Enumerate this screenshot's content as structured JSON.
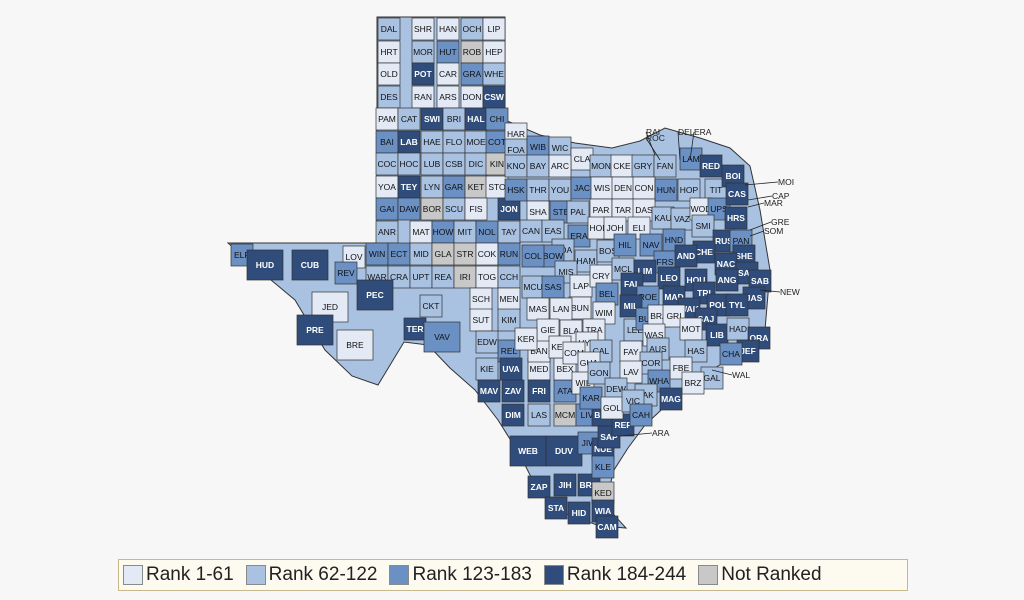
{
  "colors": {
    "rank_1_61": "#e3eaf5",
    "rank_62_122": "#aac2e2",
    "rank_123_183": "#6a90c4",
    "rank_184_244": "#2f4c7a",
    "not_ranked": "#c8c8c8"
  },
  "legend": [
    {
      "label": "Rank 1-61",
      "tier": 1
    },
    {
      "label": "Rank 62-122",
      "tier": 2
    },
    {
      "label": "Rank 123-183",
      "tier": 3
    },
    {
      "label": "Rank 184-244",
      "tier": 4
    },
    {
      "label": "Not Ranked",
      "tier": 0
    }
  ],
  "external_labels": [
    "RAI",
    "DEL",
    "ERA",
    "ROC",
    "MOI",
    "CAP",
    "MAR",
    "GRE",
    "SOM",
    "NEW",
    "WAL",
    "ARA"
  ],
  "counties": [
    {
      "label": "DAL",
      "tier": 2
    },
    {
      "label": "SHR",
      "tier": 1
    },
    {
      "label": "HAN",
      "tier": 1
    },
    {
      "label": "OCH",
      "tier": 2
    },
    {
      "label": "LIP",
      "tier": 1
    },
    {
      "label": "HRT",
      "tier": 1
    },
    {
      "label": "MOR",
      "tier": 2
    },
    {
      "label": "HUT",
      "tier": 3
    },
    {
      "label": "ROB",
      "tier": 0
    },
    {
      "label": "HEP",
      "tier": 1
    },
    {
      "label": "OLD",
      "tier": 1
    },
    {
      "label": "POT",
      "tier": 4
    },
    {
      "label": "CAR",
      "tier": 1
    },
    {
      "label": "GRA",
      "tier": 3
    },
    {
      "label": "WHE",
      "tier": 2
    },
    {
      "label": "DES",
      "tier": 2
    },
    {
      "label": "RAN",
      "tier": 1
    },
    {
      "label": "ARS",
      "tier": 1
    },
    {
      "label": "DON",
      "tier": 1
    },
    {
      "label": "CSW",
      "tier": 4
    },
    {
      "label": "PAM",
      "tier": 1
    },
    {
      "label": "CAT",
      "tier": 2
    },
    {
      "label": "SWI",
      "tier": 4
    },
    {
      "label": "BRI",
      "tier": 2
    },
    {
      "label": "HAL",
      "tier": 4
    },
    {
      "label": "CHI",
      "tier": 3
    },
    {
      "label": "BAI",
      "tier": 3
    },
    {
      "label": "LAB",
      "tier": 4
    },
    {
      "label": "HAE",
      "tier": 2
    },
    {
      "label": "FLO",
      "tier": 2
    },
    {
      "label": "MOE",
      "tier": 2
    },
    {
      "label": "COT",
      "tier": 3
    },
    {
      "label": "COC",
      "tier": 2
    },
    {
      "label": "HOC",
      "tier": 2
    },
    {
      "label": "LUB",
      "tier": 2
    },
    {
      "label": "CSB",
      "tier": 2
    },
    {
      "label": "DIC",
      "tier": 2
    },
    {
      "label": "KIN",
      "tier": 0
    },
    {
      "label": "YOA",
      "tier": 1
    },
    {
      "label": "TEY",
      "tier": 4
    },
    {
      "label": "LYN",
      "tier": 2
    },
    {
      "label": "GAR",
      "tier": 3
    },
    {
      "label": "KET",
      "tier": 0
    },
    {
      "label": "STO",
      "tier": 1
    },
    {
      "label": "GAI",
      "tier": 3
    },
    {
      "label": "DAW",
      "tier": 3
    },
    {
      "label": "BOR",
      "tier": 0
    },
    {
      "label": "SCU",
      "tier": 2
    },
    {
      "label": "FIS",
      "tier": 1
    },
    {
      "label": "JON",
      "tier": 4
    },
    {
      "label": "ANR",
      "tier": 2
    },
    {
      "label": "MAT",
      "tier": 1
    },
    {
      "label": "HOW",
      "tier": 3
    },
    {
      "label": "MIT",
      "tier": 2
    },
    {
      "label": "NOL",
      "tier": 3
    },
    {
      "label": "TAY",
      "tier": 2
    },
    {
      "label": "WIN",
      "tier": 3
    },
    {
      "label": "ECT",
      "tier": 3
    },
    {
      "label": "MID",
      "tier": 2
    },
    {
      "label": "GLA",
      "tier": 0
    },
    {
      "label": "STR",
      "tier": 0
    },
    {
      "label": "COK",
      "tier": 1
    },
    {
      "label": "RUN",
      "tier": 3
    },
    {
      "label": "LOV",
      "tier": 1
    },
    {
      "label": "WAR",
      "tier": 2
    },
    {
      "label": "CRA",
      "tier": 2
    },
    {
      "label": "UPT",
      "tier": 2
    },
    {
      "label": "REA",
      "tier": 2
    },
    {
      "label": "IRI",
      "tier": 0
    },
    {
      "label": "TOG",
      "tier": 1
    },
    {
      "label": "CCH",
      "tier": 2
    },
    {
      "label": "ELP",
      "tier": 3
    },
    {
      "label": "HUD",
      "tier": 4
    },
    {
      "label": "CUB",
      "tier": 4
    },
    {
      "label": "REV",
      "tier": 3
    },
    {
      "label": "PEC",
      "tier": 4
    },
    {
      "label": "JED",
      "tier": 1
    },
    {
      "label": "CKT",
      "tier": 2
    },
    {
      "label": "TER",
      "tier": 4
    },
    {
      "label": "PRE",
      "tier": 4
    },
    {
      "label": "BRE",
      "tier": 1
    },
    {
      "label": "VAV",
      "tier": 3
    },
    {
      "label": "SCH",
      "tier": 1
    },
    {
      "label": "MEN",
      "tier": 1
    },
    {
      "label": "SUT",
      "tier": 1
    },
    {
      "label": "KIM",
      "tier": 2
    },
    {
      "label": "EDW",
      "tier": 2
    },
    {
      "label": "KIE",
      "tier": 2
    },
    {
      "label": "REL",
      "tier": 3
    },
    {
      "label": "UVA",
      "tier": 4
    },
    {
      "label": "MED",
      "tier": 1
    },
    {
      "label": "BAN",
      "tier": 1
    },
    {
      "label": "MAV",
      "tier": 4
    },
    {
      "label": "ZAV",
      "tier": 4
    },
    {
      "label": "FRI",
      "tier": 4
    },
    {
      "label": "ATA",
      "tier": 3
    },
    {
      "label": "BEX",
      "tier": 1
    },
    {
      "label": "DIM",
      "tier": 4
    },
    {
      "label": "LAS",
      "tier": 2
    },
    {
      "label": "MCM",
      "tier": 0
    },
    {
      "label": "LIV",
      "tier": 3
    },
    {
      "label": "BEE",
      "tier": 4
    },
    {
      "label": "WEB",
      "tier": 4
    },
    {
      "label": "DUV",
      "tier": 4
    },
    {
      "label": "JIW",
      "tier": 3
    },
    {
      "label": "NUE",
      "tier": 4
    },
    {
      "label": "SAP",
      "tier": 4
    },
    {
      "label": "REF",
      "tier": 4
    },
    {
      "label": "ZAP",
      "tier": 4
    },
    {
      "label": "JIH",
      "tier": 4
    },
    {
      "label": "BRO",
      "tier": 4
    },
    {
      "label": "KLE",
      "tier": 3
    },
    {
      "label": "KED",
      "tier": 0
    },
    {
      "label": "STA",
      "tier": 4
    },
    {
      "label": "HID",
      "tier": 4
    },
    {
      "label": "WIA",
      "tier": 4
    },
    {
      "label": "CAM",
      "tier": 4
    },
    {
      "label": "HAR",
      "tier": 1
    },
    {
      "label": "FOA",
      "tier": 2
    },
    {
      "label": "WIB",
      "tier": 3
    },
    {
      "label": "WIC",
      "tier": 2
    },
    {
      "label": "CLA",
      "tier": 1
    },
    {
      "label": "MON",
      "tier": 2
    },
    {
      "label": "KNO",
      "tier": 2
    },
    {
      "label": "BAY",
      "tier": 2
    },
    {
      "label": "ARC",
      "tier": 1
    },
    {
      "label": "CKE",
      "tier": 1
    },
    {
      "label": "GRY",
      "tier": 2
    },
    {
      "label": "FAN",
      "tier": 2
    },
    {
      "label": "LAM",
      "tier": 3
    },
    {
      "label": "RED",
      "tier": 4
    },
    {
      "label": "HSK",
      "tier": 3
    },
    {
      "label": "THR",
      "tier": 2
    },
    {
      "label": "YOU",
      "tier": 2
    },
    {
      "label": "JAC",
      "tier": 3
    },
    {
      "label": "WIS",
      "tier": 1
    },
    {
      "label": "DEN",
      "tier": 1
    },
    {
      "label": "CON",
      "tier": 1
    },
    {
      "label": "HUN",
      "tier": 3
    },
    {
      "label": "HOP",
      "tier": 2
    },
    {
      "label": "TIT",
      "tier": 2
    },
    {
      "label": "BOI",
      "tier": 4
    },
    {
      "label": "SHA",
      "tier": 1
    },
    {
      "label": "STE",
      "tier": 3
    },
    {
      "label": "PAL",
      "tier": 2
    },
    {
      "label": "PAR",
      "tier": 1
    },
    {
      "label": "TAR",
      "tier": 1
    },
    {
      "label": "DAS",
      "tier": 1
    },
    {
      "label": "KAU",
      "tier": 2
    },
    {
      "label": "VAZ",
      "tier": 2
    },
    {
      "label": "WOD",
      "tier": 1
    },
    {
      "label": "UPS",
      "tier": 3
    },
    {
      "label": "CAS",
      "tier": 4
    },
    {
      "label": "CAN",
      "tier": 2
    },
    {
      "label": "EAS",
      "tier": 2
    },
    {
      "label": "ERA",
      "tier": 3
    },
    {
      "label": "HOD",
      "tier": 1
    },
    {
      "label": "JOH",
      "tier": 1
    },
    {
      "label": "ELI",
      "tier": 1
    },
    {
      "label": "SMI",
      "tier": 2
    },
    {
      "label": "HRS",
      "tier": 4
    },
    {
      "label": "COA",
      "tier": 2
    },
    {
      "label": "BOW",
      "tier": 3
    },
    {
      "label": "COL",
      "tier": 3
    },
    {
      "label": "HAM",
      "tier": 2
    },
    {
      "label": "BOS",
      "tier": 2
    },
    {
      "label": "HIL",
      "tier": 3
    },
    {
      "label": "NAV",
      "tier": 3
    },
    {
      "label": "HND",
      "tier": 3
    },
    {
      "label": "RUS",
      "tier": 4
    },
    {
      "label": "PAN",
      "tier": 3
    },
    {
      "label": "MIS",
      "tier": 2
    },
    {
      "label": "LAP",
      "tier": 1
    },
    {
      "label": "CRY",
      "tier": 1
    },
    {
      "label": "MCL",
      "tier": 2
    },
    {
      "label": "FRS",
      "tier": 3
    },
    {
      "label": "CHE",
      "tier": 4
    },
    {
      "label": "SHE",
      "tier": 4
    },
    {
      "label": "NAC",
      "tier": 4
    },
    {
      "label": "SAU",
      "tier": 4
    },
    {
      "label": "SAB",
      "tier": 4
    },
    {
      "label": "MCU",
      "tier": 2
    },
    {
      "label": "SAS",
      "tier": 3
    },
    {
      "label": "BUN",
      "tier": 1
    },
    {
      "label": "LIM",
      "tier": 4
    },
    {
      "label": "LEO",
      "tier": 4
    },
    {
      "label": "AND",
      "tier": 4
    },
    {
      "label": "HOU",
      "tier": 4
    },
    {
      "label": "ANG",
      "tier": 4
    },
    {
      "label": "MAS",
      "tier": 1
    },
    {
      "label": "LAN",
      "tier": 1
    },
    {
      "label": "BEL",
      "tier": 3
    },
    {
      "label": "FAL",
      "tier": 4
    },
    {
      "label": "ROE",
      "tier": 3
    },
    {
      "label": "TRI",
      "tier": 4
    },
    {
      "label": "JAS",
      "tier": 4
    },
    {
      "label": "GIE",
      "tier": 1
    },
    {
      "label": "WIM",
      "tier": 1
    },
    {
      "label": "MIL",
      "tier": 4
    },
    {
      "label": "MAD",
      "tier": 4
    },
    {
      "label": "WAK",
      "tier": 4
    },
    {
      "label": "POL",
      "tier": 4
    },
    {
      "label": "TYL",
      "tier": 4
    },
    {
      "label": "KER",
      "tier": 1
    },
    {
      "label": "BLA",
      "tier": 1
    },
    {
      "label": "TRA",
      "tier": 1
    },
    {
      "label": "LEE",
      "tier": 2
    },
    {
      "label": "BUS",
      "tier": 3
    },
    {
      "label": "BRA",
      "tier": 1
    },
    {
      "label": "GRI",
      "tier": 1
    },
    {
      "label": "SAJ",
      "tier": 4
    },
    {
      "label": "LIB",
      "tier": 4
    },
    {
      "label": "HAD",
      "tier": 2
    },
    {
      "label": "KEN",
      "tier": 1
    },
    {
      "label": "HYS",
      "tier": 1
    },
    {
      "label": "WAS",
      "tier": 1
    },
    {
      "label": "MOT",
      "tier": 1
    },
    {
      "label": "ORA",
      "tier": 4
    },
    {
      "label": "COM",
      "tier": 1
    },
    {
      "label": "CAL",
      "tier": 2
    },
    {
      "label": "FAY",
      "tier": 1
    },
    {
      "label": "AUS",
      "tier": 2
    },
    {
      "label": "HAS",
      "tier": 2
    },
    {
      "label": "JEF",
      "tier": 4
    },
    {
      "label": "CHA",
      "tier": 3
    },
    {
      "label": "GUA",
      "tier": 1
    },
    {
      "label": "COR",
      "tier": 2
    },
    {
      "label": "FBE",
      "tier": 1
    },
    {
      "label": "GAL",
      "tier": 2
    },
    {
      "label": "WIL",
      "tier": 1
    },
    {
      "label": "GON",
      "tier": 2
    },
    {
      "label": "LAV",
      "tier": 1
    },
    {
      "label": "WHA",
      "tier": 3
    },
    {
      "label": "BRZ",
      "tier": 1
    },
    {
      "label": "KAR",
      "tier": 3
    },
    {
      "label": "DEW",
      "tier": 2
    },
    {
      "label": "JAK",
      "tier": 2
    },
    {
      "label": "MAG",
      "tier": 4
    },
    {
      "label": "GOL",
      "tier": 1
    },
    {
      "label": "VIC",
      "tier": 2
    },
    {
      "label": "CAH",
      "tier": 3
    }
  ]
}
